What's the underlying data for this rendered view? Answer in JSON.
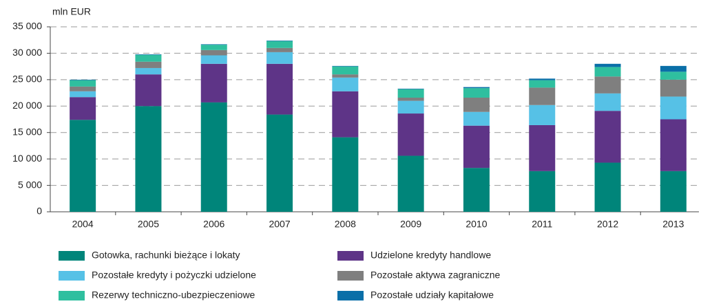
{
  "chart_data": {
    "type": "stacked_bar",
    "y_label": "mln EUR",
    "categories": [
      "2004",
      "2005",
      "2006",
      "2007",
      "2008",
      "2009",
      "2010",
      "2011",
      "2012",
      "2013"
    ],
    "series": [
      {
        "name": "Gotowka, rachunki bieżące i lokaty",
        "color": "#00857a",
        "values": [
          17400,
          20000,
          20700,
          18400,
          14100,
          10600,
          8300,
          7700,
          9300,
          7700
        ]
      },
      {
        "name": "Udzielone kredyty handlowe",
        "color": "#5e3487",
        "values": [
          4300,
          6000,
          7300,
          9600,
          8700,
          8000,
          8000,
          8700,
          9800,
          9800
        ]
      },
      {
        "name": "Pozostałe kredyty i pożyczki udzielone",
        "color": "#56c1e6",
        "values": [
          1100,
          1200,
          1600,
          2200,
          2600,
          2400,
          2600,
          3800,
          3300,
          4300
        ]
      },
      {
        "name": "Pozostałe aktywa zagraniczne",
        "color": "#7f7f7f",
        "values": [
          900,
          1200,
          1000,
          800,
          600,
          600,
          2700,
          3300,
          3200,
          3200
        ]
      },
      {
        "name": "Rezerwy techniczno-ubezpieczeniowe",
        "color": "#2fbf9f",
        "values": [
          1200,
          1300,
          1000,
          1300,
          1500,
          1600,
          1800,
          1400,
          1800,
          1500
        ]
      },
      {
        "name": "Pozostałe udziały kapitałowe",
        "color": "#0a6fa8",
        "values": [
          100,
          100,
          100,
          100,
          100,
          100,
          200,
          300,
          600,
          1100
        ]
      }
    ],
    "ylim": [
      0,
      35000
    ],
    "yticks": [
      0,
      {
        "value": 5000,
        "label": "5 000"
      },
      {
        "value": 10000,
        "label": "10 000"
      },
      {
        "value": 15000,
        "label": "15 000"
      },
      {
        "value": 20000,
        "label": "20 000"
      },
      {
        "value": 25000,
        "label": "25 000"
      },
      {
        "value": 30000,
        "label": "30 000"
      },
      {
        "value": 35000,
        "label": "35 000"
      }
    ],
    "grid": true
  }
}
